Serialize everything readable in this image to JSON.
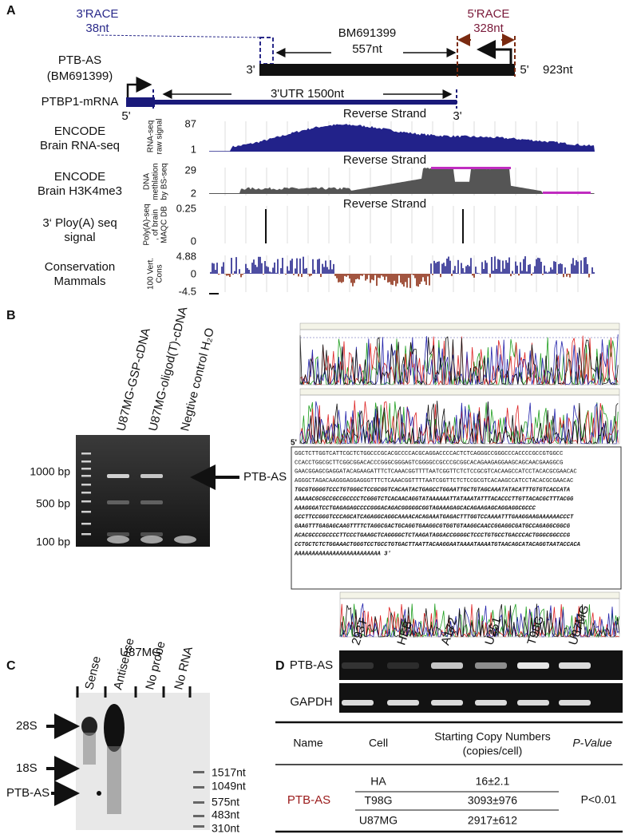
{
  "panel_a": {
    "label": "A",
    "race3": {
      "title": "3'RACE",
      "length": "38nt"
    },
    "race5": {
      "title": "5'RACE",
      "length": "328nt"
    },
    "bm": {
      "name": "BM691399",
      "length": "557nt"
    },
    "ptb_as": {
      "name": "PTB-AS",
      "id": "(BM691399)",
      "end3": "3'",
      "end5": "5'",
      "length": "923nt"
    },
    "mrna": {
      "name": "PTBP1-mRNA",
      "utr": "3'UTR  1500nt",
      "end5": "5'",
      "end3": "3'"
    },
    "tracks": [
      {
        "name": [
          "ENCODE",
          "Brain RNA-seq"
        ],
        "strand": "Reverse Strand",
        "axis_title": [
          "RNA-seq",
          "raw signal"
        ],
        "ticks": [
          "87",
          "1"
        ]
      },
      {
        "name": [
          "ENCODE",
          "Brain H3K4me3"
        ],
        "strand": "Reverse Strand",
        "axis_title": [
          "DNA",
          "methlation",
          "by BS-seq"
        ],
        "ticks": [
          "29",
          "2"
        ]
      },
      {
        "name": [
          "3‘ Ploy(A) seq",
          "signal"
        ],
        "strand": "Reverse Strand",
        "axis_title": [
          "Poly(A)-seq",
          ", of brain",
          "MAQC DB"
        ],
        "ticks": [
          "0.25",
          "0"
        ]
      },
      {
        "name": [
          "Conservation",
          "Mammals"
        ],
        "axis_title": [
          "100 Vert.",
          "Cons"
        ],
        "ticks": [
          "4.88",
          "0",
          "-4.5"
        ]
      }
    ]
  },
  "panel_b": {
    "label": "B",
    "lanes": [
      "U87MG-GSP-cDNA",
      "U87MG-oligod(T)-cDNA",
      "Negtive control H₂O"
    ],
    "markers": [
      "1000 bp",
      "500 bp",
      "100 bp"
    ],
    "band": "PTB-AS",
    "end5": "5'",
    "sequence": [
      "GGCTCTTGGTCATTCGCTCTGGCCCGCACGCCCCACGCAGGACCCCACTCTCAGGGCCGGGCCCACCCCGCCGTGGCC",
      "CCACCTGGCGCTTCGGCGGACACCCGGGCGGGAGTCGGGGCCGCCCGCGGCACAGAAGAGGAAGCAGCAACGAAGGCG",
      "GAACGGAGCGAGGATACAGAAGATTTCTCAAACGGTTTTAATCGGTTCTCTCCGCGTCACAAGCCATCCTACACGCGAACAC",
      "AGGGCTAGACAAGGGAGGAGGGTTTCTCAAACGGTTTTAATCGGTTCTCTCCGCGTCACAAGCCATCCTACACGCGAACAC",
      "TGCGTGGGGTCCCTGTGGGCTCCGCGGTCACAATACTGAGCCTGGAATTGCTGTAGCAAATATACATTTGTGTCACCATA",
      "AAAAACGCGCCGCCGCCCCTCGGGTCTCACAACAGGTATAAAAAATTATAAATATTTACACCCTTGTTACACGCTTTACGG",
      "AAAGGGATCCTGAGAGAGCCCCGGGACAGACGGGGGCGGTAGAAAGAGCACAGAAGAGCAGGAGGCGCCC",
      "GCCTTCCGGGTCCCAGCATCAGAGGCAGGCAAAACACAGAAATGAGACTTTGGTCCAAAATTTGAAGGAAGAAAAAACCCT",
      "GAAGTTTGAGAGCAAGTTTTCTAGGCGACTGCAGGTGAAGGCGTGGTGTAAGGCAACCGGAGGCGATGCCAGAGGCGGCG",
      "ACACGCCCGCCCCTTCCCTGAAGCTCAGGGGCTCTAAGATAGGACCGGGGCTCCCTGTGCCTGACCCACTGGGCGGCCCG",
      "CCTGCTCTCTGGAAACTGGGTCCTGCCTGTGACTTAATTACAAGGAATAAAATAAAATGTAACAGCATACAGGTAATACCACA",
      "AAAAAAAAAAAAAAAAAAAAAAAAA 3'"
    ]
  },
  "panel_c": {
    "label": "C",
    "cell": "U87MG",
    "lanes": [
      "Sense",
      "Antisense",
      "No probe",
      "No RNA"
    ],
    "left": [
      "28S",
      "18S",
      "PTB-AS"
    ],
    "right": [
      "1517nt",
      "1049nt",
      "575nt",
      "483nt",
      "310nt"
    ]
  },
  "panel_d": {
    "label": "D",
    "lanes": [
      "293T",
      "HEB",
      "A172",
      "U251",
      "T98G",
      "U87MG"
    ],
    "genes": [
      "PTB-AS",
      "GAPDH"
    ],
    "table": {
      "header": [
        "Name",
        "Cell",
        "Starting Copy Numbers",
        "(copies/cell)",
        "P-Value"
      ],
      "name": "PTB-AS",
      "rows": [
        [
          "HA",
          "16±2.1"
        ],
        [
          "T98G",
          "3093±976"
        ],
        [
          "U87MG",
          "2917±612"
        ]
      ],
      "p": "P<0.01"
    }
  }
}
